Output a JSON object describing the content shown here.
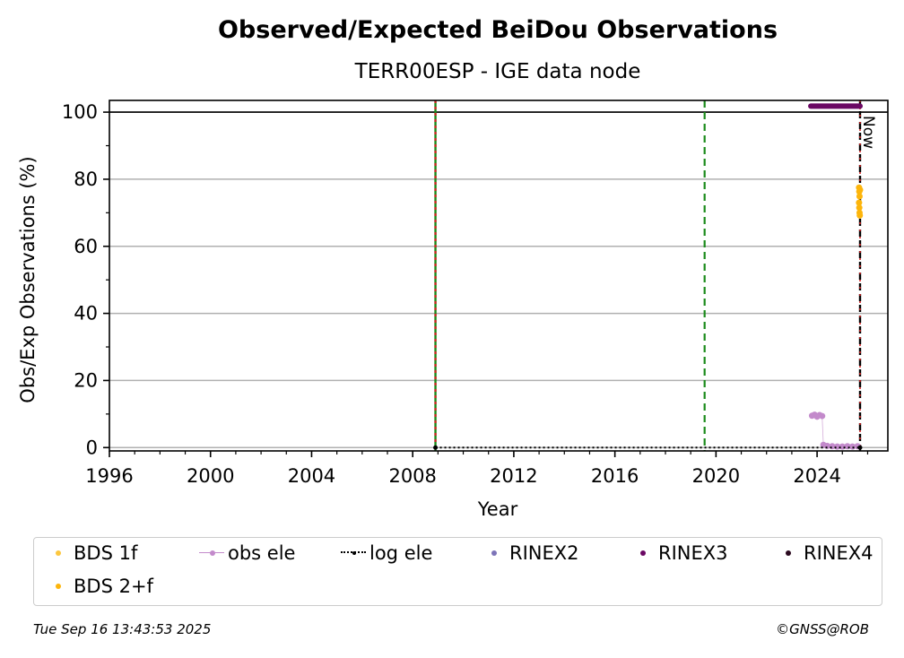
{
  "chart_data": {
    "type": "scatter",
    "title": "Observed/Expected BeiDou Observations",
    "subtitle": "TERR00ESP - IGE data node",
    "xlabel": "Year",
    "ylabel": "Obs/Exp Observations (%)",
    "xlim": [
      1996,
      2026.8
    ],
    "ylim": [
      -1,
      103.5
    ],
    "xticks": [
      1996,
      2000,
      2004,
      2008,
      2012,
      2016,
      2020,
      2024
    ],
    "yticks": [
      0,
      20,
      40,
      60,
      80,
      100
    ],
    "grid": "horizontal",
    "reference_line_y": 100,
    "vertical_lines": [
      {
        "x": 2008.9,
        "style": "red-green-dashed"
      },
      {
        "x": 2019.55,
        "style": "green-dashed"
      },
      {
        "x": 2025.7,
        "style": "black-red-dashed",
        "label": "Now"
      }
    ],
    "colors": {
      "bds1f": "#fcc73f",
      "bds2f": "#fdb50b",
      "obs_ele": "#c38acb",
      "log_ele": "#000000",
      "rinex2": "#7d74b8",
      "rinex3": "#6a0763",
      "rinex4": "#2b0a1f"
    },
    "series": [
      {
        "name": "BDS 1f",
        "key": "bds1f",
        "points": []
      },
      {
        "name": "BDS 2+f",
        "key": "bds2f",
        "points": [
          [
            2025.66,
            77.5
          ],
          [
            2025.67,
            76.3
          ],
          [
            2025.68,
            74.9
          ],
          [
            2025.66,
            73.0
          ],
          [
            2025.67,
            71.5
          ],
          [
            2025.68,
            70.0
          ],
          [
            2025.69,
            69.2
          ],
          [
            2025.7,
            76.8
          ]
        ]
      },
      {
        "name": "obs ele",
        "key": "obs_ele",
        "points": [
          [
            2023.8,
            9.5
          ],
          [
            2023.9,
            9.8
          ],
          [
            2024.0,
            9.2
          ],
          [
            2024.1,
            9.7
          ],
          [
            2024.2,
            9.4
          ],
          [
            2024.25,
            0.8
          ],
          [
            2024.4,
            0.5
          ],
          [
            2024.6,
            0.4
          ],
          [
            2024.8,
            0.3
          ],
          [
            2025.0,
            0.3
          ],
          [
            2025.2,
            0.4
          ],
          [
            2025.4,
            0.3
          ],
          [
            2025.6,
            0.4
          ]
        ]
      },
      {
        "name": "log ele",
        "key": "log_ele",
        "points": [
          [
            2008.9,
            0
          ],
          [
            2025.7,
            0
          ]
        ]
      },
      {
        "name": "RINEX2",
        "key": "rinex2",
        "points": []
      },
      {
        "name": "RINEX3",
        "key": "rinex3",
        "x_range": [
          2023.75,
          2025.7
        ],
        "y": 101.8
      },
      {
        "name": "RINEX4",
        "key": "rinex4",
        "points": []
      }
    ],
    "legend_position": "bottom"
  },
  "legend": [
    {
      "label": "BDS 1f",
      "key": "bds1f",
      "kind": "dot"
    },
    {
      "label": "obs ele",
      "key": "obs_ele",
      "kind": "line-dot"
    },
    {
      "label": "log ele",
      "key": "log_ele",
      "kind": "dotted-dot"
    },
    {
      "label": "RINEX2",
      "key": "rinex2",
      "kind": "dot"
    },
    {
      "label": "RINEX3",
      "key": "rinex3",
      "kind": "dot"
    },
    {
      "label": "RINEX4",
      "key": "rinex4",
      "kind": "dot"
    },
    {
      "label": "BDS 2+f",
      "key": "bds2f",
      "kind": "dot"
    }
  ],
  "footer": {
    "timestamp": "Tue Sep 16 13:43:53 2025",
    "credit": "©GNSS@ROB"
  }
}
